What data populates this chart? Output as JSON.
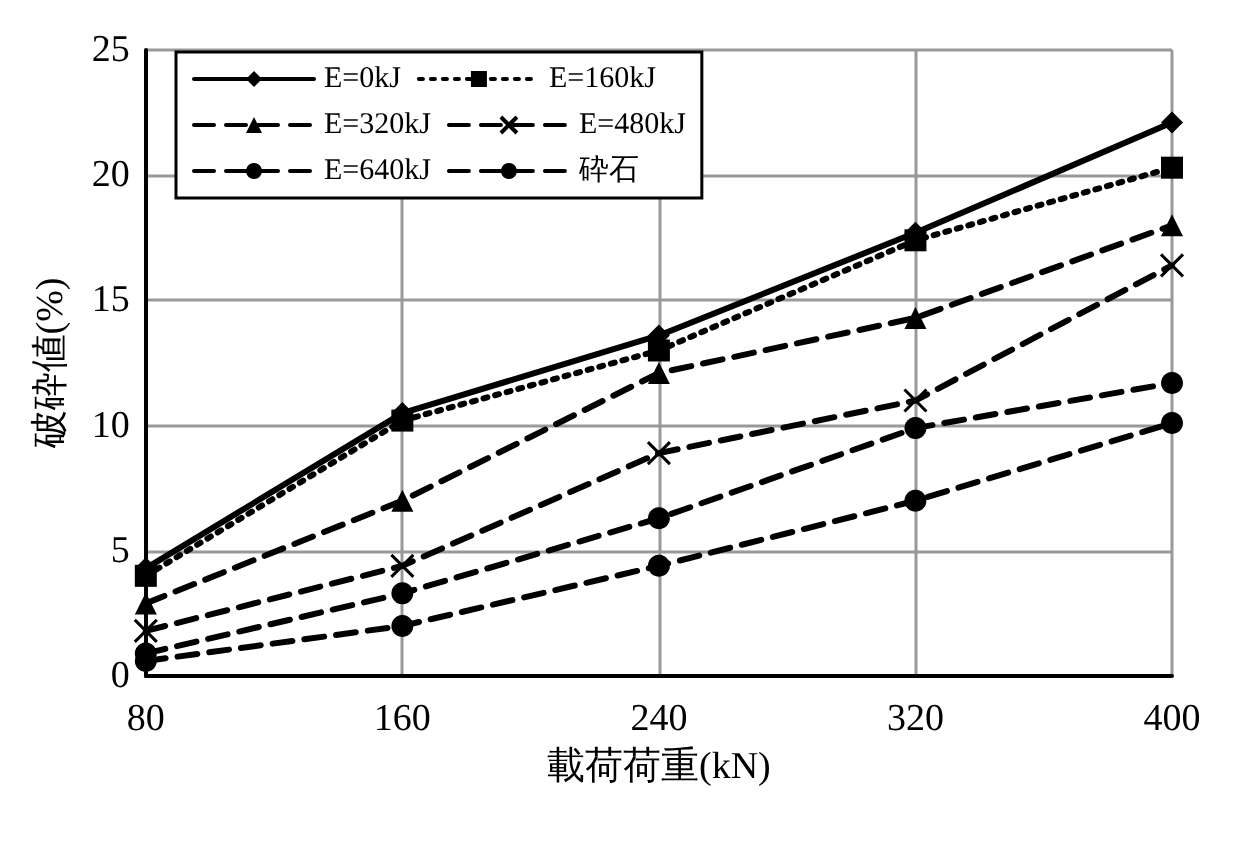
{
  "chart_data": {
    "type": "line",
    "xlabel": "載荷荷重(kN)",
    "ylabel": "破砕値(%)",
    "categories": [
      "80",
      "160",
      "240",
      "320",
      "400"
    ],
    "ylim": [
      0,
      25
    ],
    "yticks": [
      0,
      5,
      10,
      15,
      20,
      25
    ],
    "grid": true,
    "legend": "top left",
    "series": [
      {
        "name": "E=0kJ",
        "color": "#000000",
        "marker": "diamond",
        "line_style": "solid",
        "values": [
          4.3,
          10.5,
          13.6,
          17.7,
          22.1
        ]
      },
      {
        "name": "E=160kJ",
        "color": "#000000",
        "marker": "square",
        "line_style": "dotted",
        "values": [
          4.0,
          10.2,
          13.0,
          17.4,
          20.3
        ]
      },
      {
        "name": "E=320kJ",
        "color": "#000000",
        "marker": "triangle",
        "line_style": "dashed",
        "values": [
          2.9,
          7.0,
          12.1,
          14.3,
          18.0
        ]
      },
      {
        "name": "E=480kJ",
        "color": "#000000",
        "marker": "cross",
        "line_style": "dashed",
        "values": [
          1.8,
          4.4,
          8.9,
          11.0,
          16.4
        ]
      },
      {
        "name": "E=640kJ",
        "color": "#000000",
        "marker": "circle",
        "line_style": "dashed",
        "values": [
          0.9,
          3.3,
          6.3,
          9.9,
          11.7
        ]
      },
      {
        "name": "砕石",
        "color": "#000000",
        "marker": "circle",
        "line_style": "dashed",
        "values": [
          0.6,
          2.0,
          4.4,
          7.0,
          10.1
        ]
      }
    ]
  }
}
